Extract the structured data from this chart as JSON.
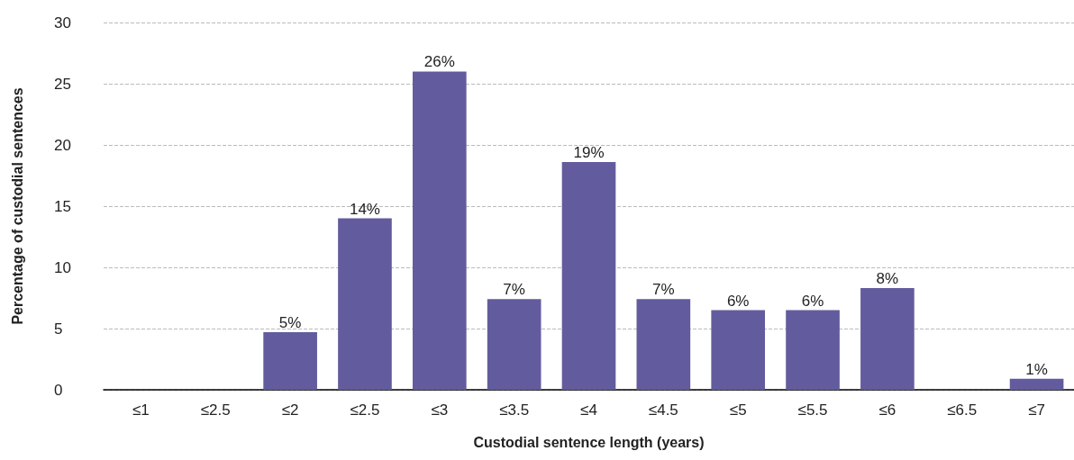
{
  "chart_data": {
    "type": "bar",
    "xlabel": "Custodial sentence length (years)",
    "ylabel": "Percentage of custodial sentences",
    "categories": [
      "≤1",
      "≤2.5",
      "≤2",
      "≤2.5",
      "≤3",
      "≤3.5",
      "≤4",
      "≤4.5",
      "≤5",
      "≤5.5",
      "≤6",
      "≤6.5",
      "≤7"
    ],
    "values": [
      0,
      0,
      4.7,
      14,
      26,
      7.4,
      18.6,
      7.4,
      6.5,
      6.5,
      8.3,
      0,
      0.9
    ],
    "value_labels": [
      null,
      null,
      "5%",
      "14%",
      "26%",
      "7%",
      "19%",
      "7%",
      "6%",
      "6%",
      "8%",
      null,
      "1%"
    ],
    "color": "#625c9e",
    "ylim": [
      0,
      30
    ],
    "yticks": [
      0,
      5,
      10,
      15,
      20,
      25,
      30
    ],
    "grid": "y",
    "line_style": "dashed"
  }
}
